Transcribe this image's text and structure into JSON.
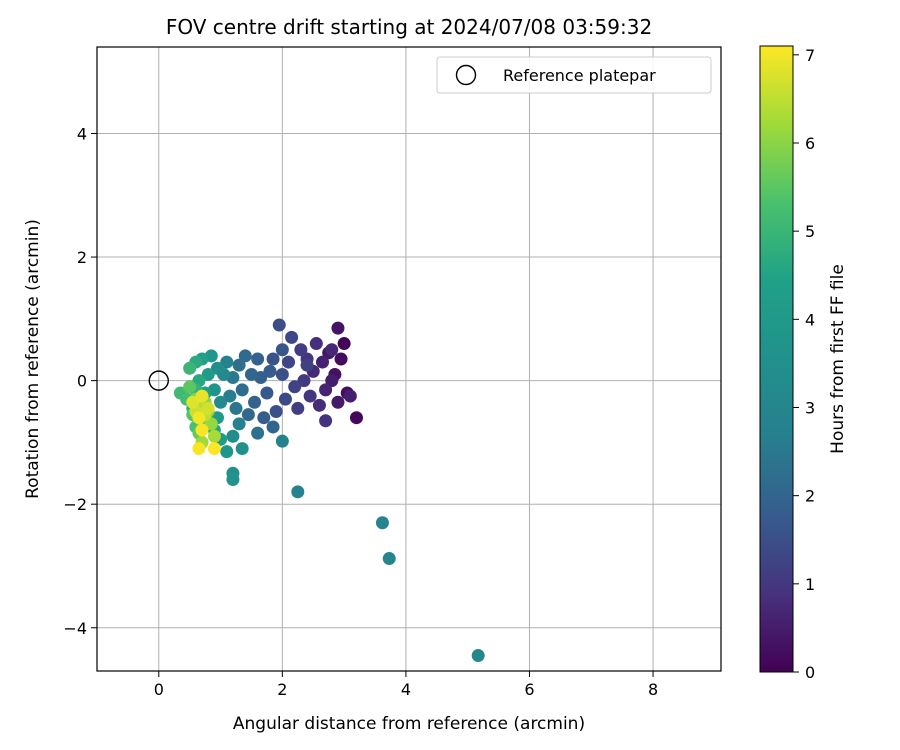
{
  "chart_data": {
    "type": "scatter",
    "title": "FOV centre drift starting at 2024/07/08 03:59:32",
    "xlabel": "Angular distance from reference (arcmin)",
    "ylabel": "Rotation from reference (arcmin)",
    "xlim": [
      -1.0,
      9.1
    ],
    "ylim": [
      -4.7,
      5.4
    ],
    "xticks": [
      0,
      2,
      4,
      6,
      8
    ],
    "yticks": [
      -4,
      -2,
      0,
      2,
      4
    ],
    "xtick_labels": [
      "0",
      "2",
      "4",
      "6",
      "8"
    ],
    "ytick_labels": [
      "−4",
      "−2",
      "0",
      "2",
      "4"
    ],
    "grid": true,
    "legend": {
      "placement": "top-right",
      "entries": [
        {
          "label": "Reference platepar",
          "marker": "open-circle",
          "color": "#000000"
        }
      ]
    },
    "reference_point": {
      "x": 0.0,
      "y": 0.0
    },
    "colorbar": {
      "label": "Hours from first FF file",
      "colormap": "viridis",
      "range": [
        0,
        7.1
      ],
      "ticks": [
        0,
        1,
        2,
        3,
        4,
        5,
        6,
        7
      ],
      "tick_labels": [
        "0",
        "1",
        "2",
        "3",
        "4",
        "5",
        "6",
        "7"
      ]
    },
    "series": [
      {
        "points": [
          [
            3.0,
            0.6,
            0.05
          ],
          [
            3.2,
            -0.6,
            0.1
          ],
          [
            2.95,
            0.35,
            0.2
          ],
          [
            3.05,
            -0.2,
            0.25
          ],
          [
            2.85,
            0.1,
            0.3
          ],
          [
            2.9,
            0.85,
            0.35
          ],
          [
            2.75,
            0.45,
            0.4
          ],
          [
            2.9,
            -0.35,
            0.45
          ],
          [
            2.8,
            0.0,
            0.5
          ],
          [
            3.1,
            -0.25,
            0.55
          ],
          [
            2.65,
            0.3,
            0.6
          ],
          [
            2.7,
            -0.15,
            0.65
          ],
          [
            2.8,
            0.5,
            0.7
          ],
          [
            2.5,
            0.15,
            0.75
          ],
          [
            2.6,
            -0.4,
            0.8
          ],
          [
            2.55,
            0.6,
            0.85
          ],
          [
            2.7,
            -0.65,
            0.9
          ],
          [
            2.4,
            0.35,
            0.95
          ],
          [
            2.45,
            -0.25,
            1.0
          ],
          [
            2.35,
            0.0,
            1.05
          ],
          [
            2.3,
            0.5,
            1.1
          ],
          [
            2.25,
            -0.45,
            1.15
          ],
          [
            2.4,
            0.25,
            1.2
          ],
          [
            2.2,
            -0.1,
            1.25
          ],
          [
            2.1,
            0.3,
            1.3
          ],
          [
            2.15,
            0.7,
            1.35
          ],
          [
            2.05,
            -0.3,
            1.4
          ],
          [
            1.95,
            0.9,
            1.45
          ],
          [
            2.0,
            0.1,
            1.5
          ],
          [
            1.9,
            -0.5,
            1.55
          ],
          [
            1.85,
            0.35,
            1.6
          ],
          [
            2.0,
            0.5,
            1.65
          ],
          [
            1.75,
            -0.2,
            1.7
          ],
          [
            1.8,
            0.15,
            1.75
          ],
          [
            1.7,
            -0.6,
            1.8
          ],
          [
            1.65,
            0.05,
            1.85
          ],
          [
            1.6,
            0.35,
            1.9
          ],
          [
            1.55,
            -0.35,
            1.95
          ],
          [
            1.85,
            -0.75,
            2.0
          ],
          [
            1.5,
            0.1,
            2.05
          ],
          [
            1.45,
            -0.55,
            2.1
          ],
          [
            1.4,
            0.4,
            2.15
          ],
          [
            1.35,
            -0.15,
            2.2
          ],
          [
            1.3,
            0.25,
            2.25
          ],
          [
            1.6,
            -0.85,
            2.3
          ],
          [
            1.25,
            -0.45,
            2.4
          ],
          [
            1.2,
            0.05,
            2.5
          ],
          [
            1.15,
            -0.25,
            2.6
          ],
          [
            1.1,
            0.3,
            2.7
          ],
          [
            2.0,
            -0.98,
            2.75
          ],
          [
            1.3,
            -0.7,
            2.8
          ],
          [
            2.25,
            -1.8,
            2.85
          ],
          [
            3.62,
            -2.3,
            2.9
          ],
          [
            3.73,
            -2.88,
            2.95
          ],
          [
            5.17,
            -4.45,
            3.0
          ],
          [
            1.05,
            0.1,
            3.1
          ],
          [
            1.0,
            -0.35,
            3.2
          ],
          [
            1.2,
            -0.9,
            3.3
          ],
          [
            0.95,
            0.2,
            3.4
          ],
          [
            1.35,
            -1.1,
            3.5
          ],
          [
            1.2,
            -1.5,
            3.55
          ],
          [
            1.2,
            -1.6,
            3.6
          ],
          [
            0.9,
            -0.15,
            3.7
          ],
          [
            1.1,
            -1.15,
            3.8
          ],
          [
            0.85,
            0.4,
            3.9
          ],
          [
            0.95,
            -0.6,
            4.0
          ],
          [
            0.8,
            0.1,
            4.1
          ],
          [
            1.0,
            -0.95,
            4.2
          ],
          [
            0.75,
            -0.2,
            4.3
          ],
          [
            0.7,
            0.35,
            4.4
          ],
          [
            0.9,
            -0.8,
            4.5
          ],
          [
            0.65,
            0.0,
            4.6
          ],
          [
            0.6,
            0.3,
            4.7
          ],
          [
            0.55,
            -0.45,
            4.8
          ],
          [
            0.6,
            -0.15,
            4.9
          ],
          [
            0.5,
            0.2,
            5.0
          ],
          [
            0.35,
            -0.2,
            5.1
          ],
          [
            0.45,
            -0.3,
            5.2
          ],
          [
            0.6,
            -0.75,
            5.3
          ],
          [
            0.55,
            -0.55,
            5.4
          ],
          [
            0.5,
            -0.1,
            5.5
          ],
          [
            0.65,
            -0.85,
            5.6
          ],
          [
            0.7,
            -0.65,
            5.7
          ],
          [
            0.8,
            -0.5,
            5.8
          ],
          [
            0.6,
            -0.3,
            5.9
          ],
          [
            0.75,
            -0.35,
            6.0
          ],
          [
            0.85,
            -0.7,
            6.1
          ],
          [
            0.7,
            -1.0,
            6.2
          ],
          [
            0.9,
            -0.9,
            6.3
          ],
          [
            0.65,
            -0.4,
            6.4
          ],
          [
            0.75,
            -0.55,
            6.5
          ],
          [
            0.6,
            -0.5,
            6.6
          ],
          [
            0.8,
            -0.45,
            6.7
          ],
          [
            0.55,
            -0.35,
            6.8
          ],
          [
            0.7,
            -0.25,
            6.9
          ],
          [
            0.65,
            -0.6,
            7.0
          ],
          [
            0.7,
            -0.8,
            7.05
          ],
          [
            0.65,
            -1.1,
            7.05
          ],
          [
            0.9,
            -1.1,
            7.1
          ]
        ]
      }
    ]
  }
}
